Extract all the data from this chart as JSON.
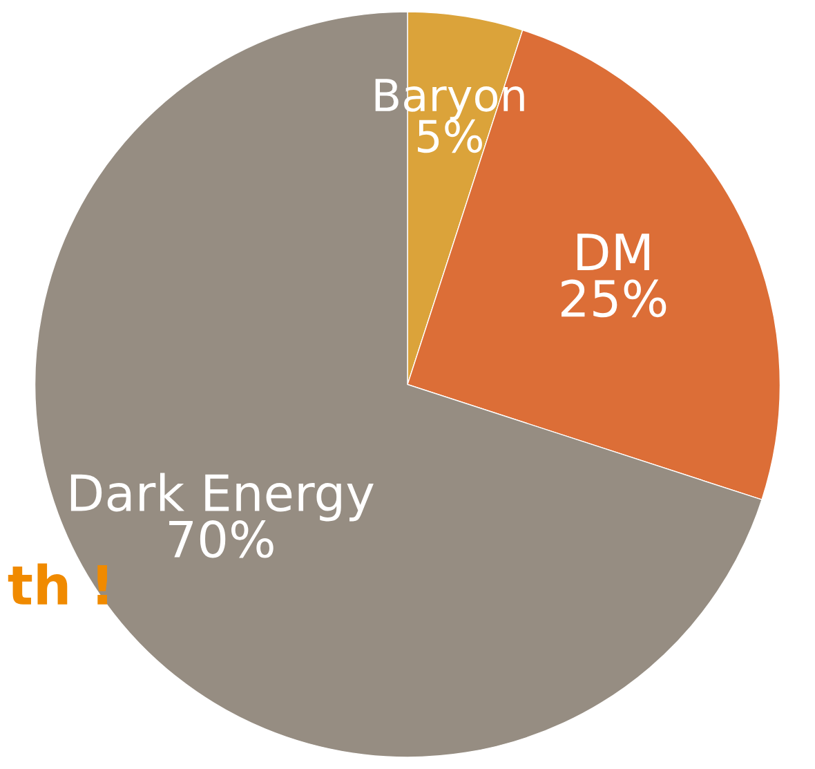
{
  "chart_data": {
    "type": "pie",
    "categories": [
      "Baryon",
      "DM",
      "Dark Energy"
    ],
    "values": [
      5,
      25,
      70
    ],
    "value_labels": [
      "5%",
      "25%",
      "70%"
    ],
    "colors": [
      "#dba33a",
      "#dc6e37",
      "#968d82"
    ],
    "annotations": [
      "th !"
    ]
  }
}
